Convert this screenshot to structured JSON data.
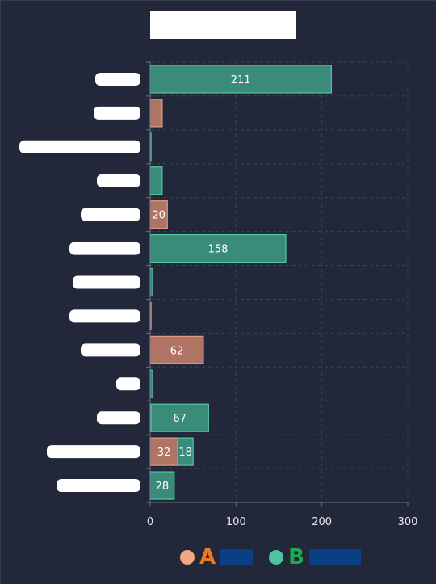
{
  "chart_data": {
    "type": "bar",
    "orientation": "horizontal",
    "stacked": true,
    "title": "",
    "categories": [
      "",
      "",
      "",
      "",
      "",
      "",
      "",
      "",
      "",
      "",
      "",
      "",
      ""
    ],
    "series": [
      {
        "name": "A",
        "color": "#f4a582",
        "values": [
          0,
          14,
          0,
          0,
          20,
          0,
          0,
          1,
          62,
          0,
          1,
          32,
          0
        ]
      },
      {
        "name": "B",
        "color": "#4fc3a1",
        "values": [
          211,
          0,
          1,
          14,
          0,
          158,
          3,
          0,
          0,
          3,
          67,
          18,
          28
        ]
      }
    ],
    "data_labels": [
      {
        "series": 1,
        "index": 0,
        "text": "211"
      },
      {
        "series": 0,
        "index": 4,
        "text": "20"
      },
      {
        "series": 1,
        "index": 5,
        "text": "158"
      },
      {
        "series": 0,
        "index": 8,
        "text": "62"
      },
      {
        "series": 1,
        "index": 10,
        "text": "67"
      },
      {
        "series": 0,
        "index": 11,
        "text": "32"
      },
      {
        "series": 1,
        "index": 11,
        "text": "18"
      },
      {
        "series": 1,
        "index": 12,
        "text": "28"
      }
    ],
    "xlim": [
      0,
      300
    ],
    "xticks": [
      "0",
      "100",
      "200",
      "300"
    ],
    "grid": true,
    "legend_position": "bottom-center"
  },
  "legend": {
    "items": [
      {
        "label": "A",
        "dot_color": "#f4a582",
        "label_color": "#f07a20",
        "bar_color": "#0a3f86"
      },
      {
        "label": "B",
        "dot_color": "#4fc3a1",
        "label_color": "#1ea94b",
        "bar_color": "#0a3f86"
      }
    ]
  },
  "colors": {
    "background": "#222839",
    "grid": "#3a4158",
    "axis": "#6a7088",
    "text": "#e6e8ee"
  }
}
